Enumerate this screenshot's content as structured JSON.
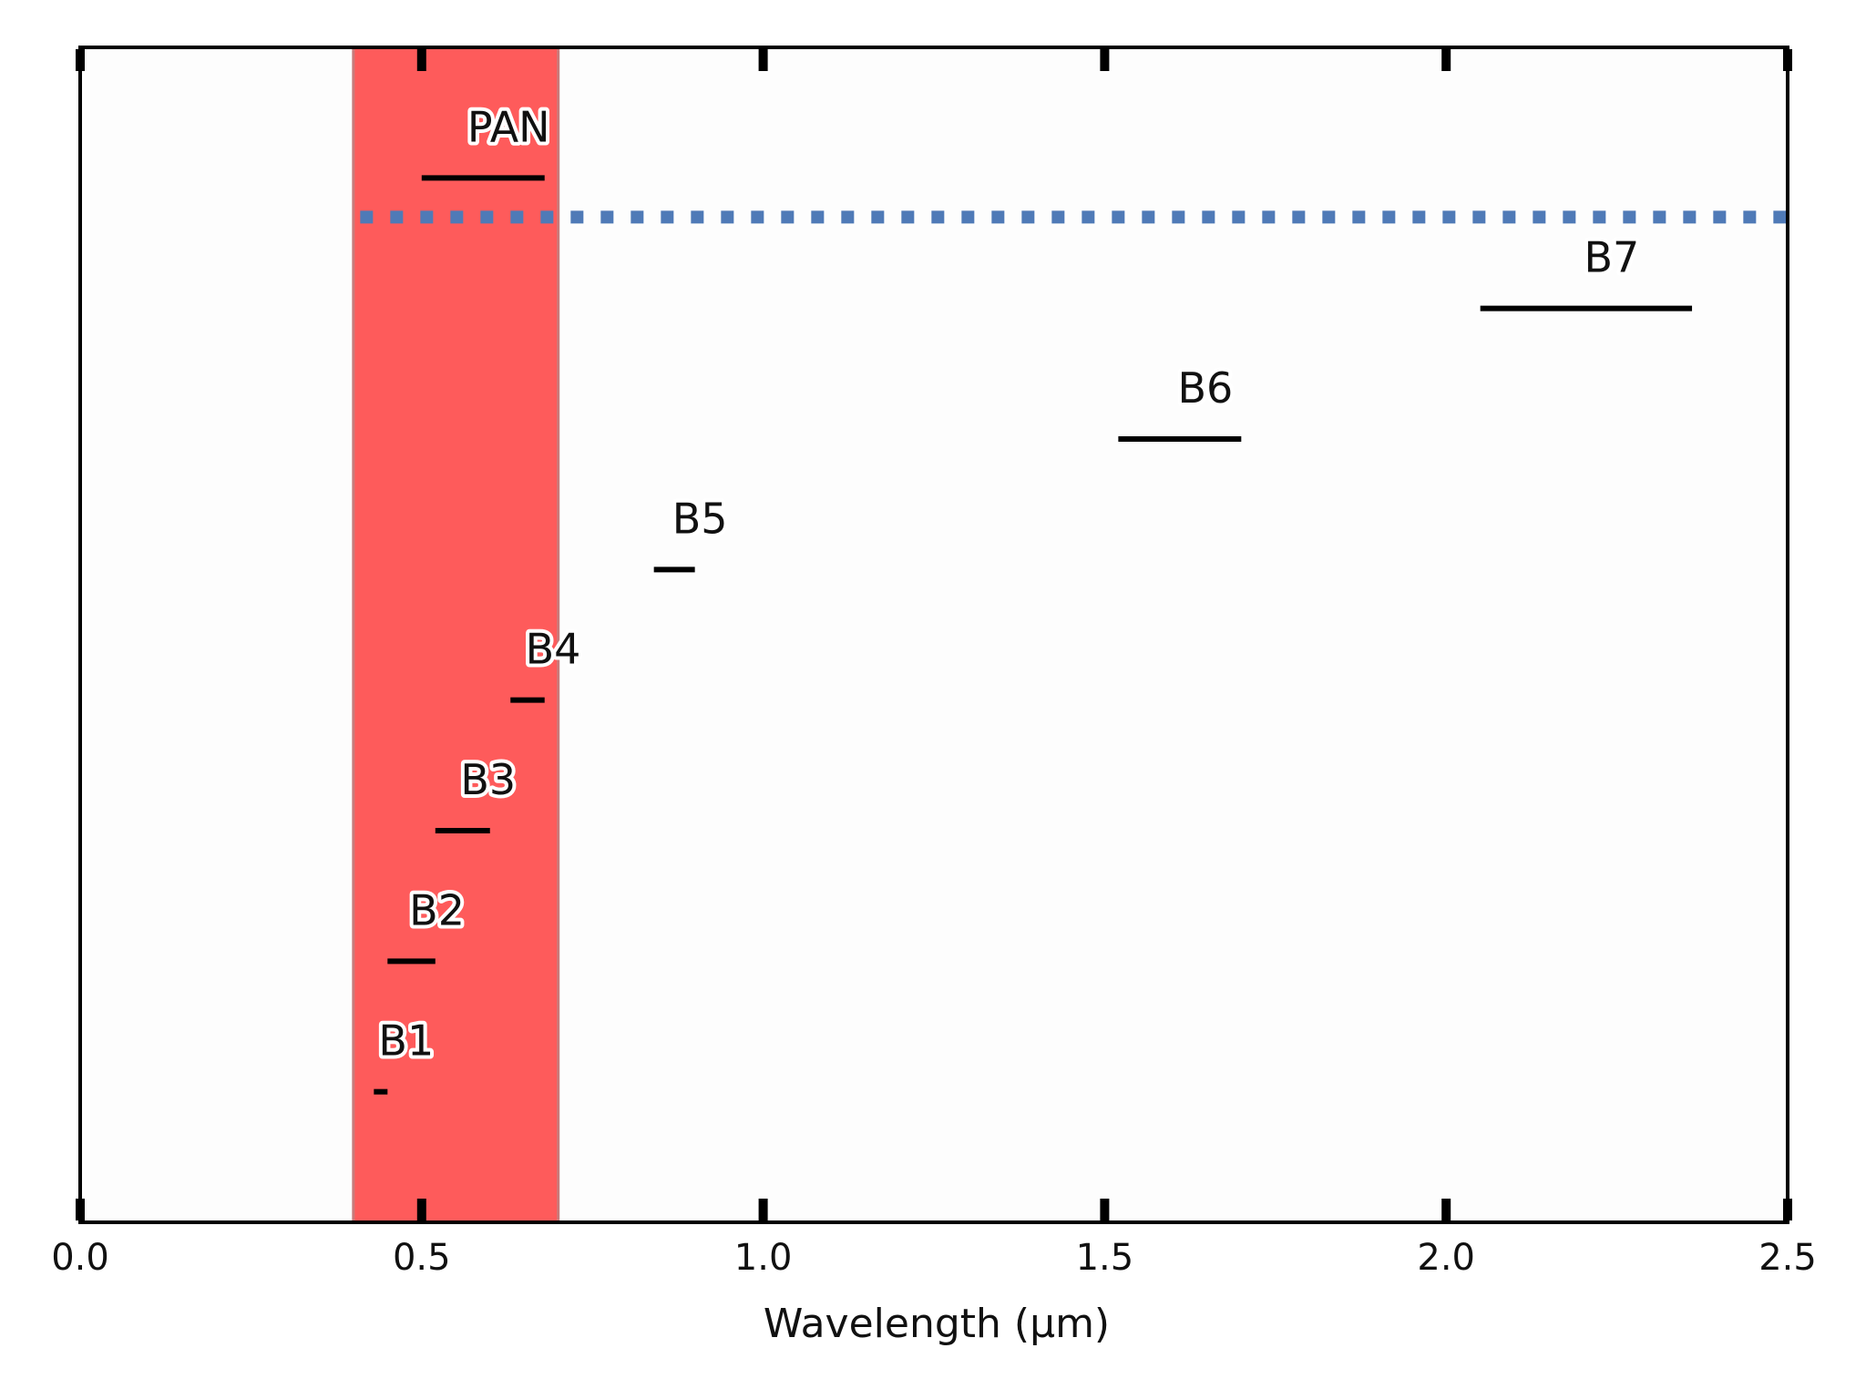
{
  "chart_data": {
    "type": "bar",
    "title": "",
    "xlabel": "Wavelength (μm)",
    "ylabel": "",
    "xlim": [
      0.0,
      2.5
    ],
    "ylim": [
      0,
      9
    ],
    "xticks": [
      0.0,
      0.5,
      1.0,
      1.5,
      2.0,
      2.5
    ],
    "xtick_labels": [
      "0.0",
      "0.5",
      "1.0",
      "1.5",
      "2.0",
      "2.5"
    ],
    "grid": false,
    "legend": "none",
    "bands": [
      {
        "label": "B1",
        "x_start": 0.43,
        "x_end": 0.45,
        "y": 1
      },
      {
        "label": "B2",
        "x_start": 0.45,
        "x_end": 0.52,
        "y": 2
      },
      {
        "label": "B3",
        "x_start": 0.52,
        "x_end": 0.6,
        "y": 3
      },
      {
        "label": "B4",
        "x_start": 0.63,
        "x_end": 0.68,
        "y": 4
      },
      {
        "label": "B5",
        "x_start": 0.84,
        "x_end": 0.9,
        "y": 5
      },
      {
        "label": "B6",
        "x_start": 1.52,
        "x_end": 1.7,
        "y": 6
      },
      {
        "label": "B7",
        "x_start": 2.05,
        "x_end": 2.36,
        "y": 7
      },
      {
        "label": "PAN",
        "x_start": 0.5,
        "x_end": 0.68,
        "y": 8
      }
    ],
    "visible_span": {
      "x_start": 0.4,
      "x_end": 0.7
    },
    "threshold_line": {
      "y": 7.7,
      "x_start": 0.41,
      "x_end": 2.5
    }
  },
  "colors": {
    "visible_span": "#fe5b5b",
    "visible_span_edge": "#c87a7a",
    "threshold_line": "#4f7ab7",
    "band_line": "#000000",
    "axis": "#000000"
  }
}
